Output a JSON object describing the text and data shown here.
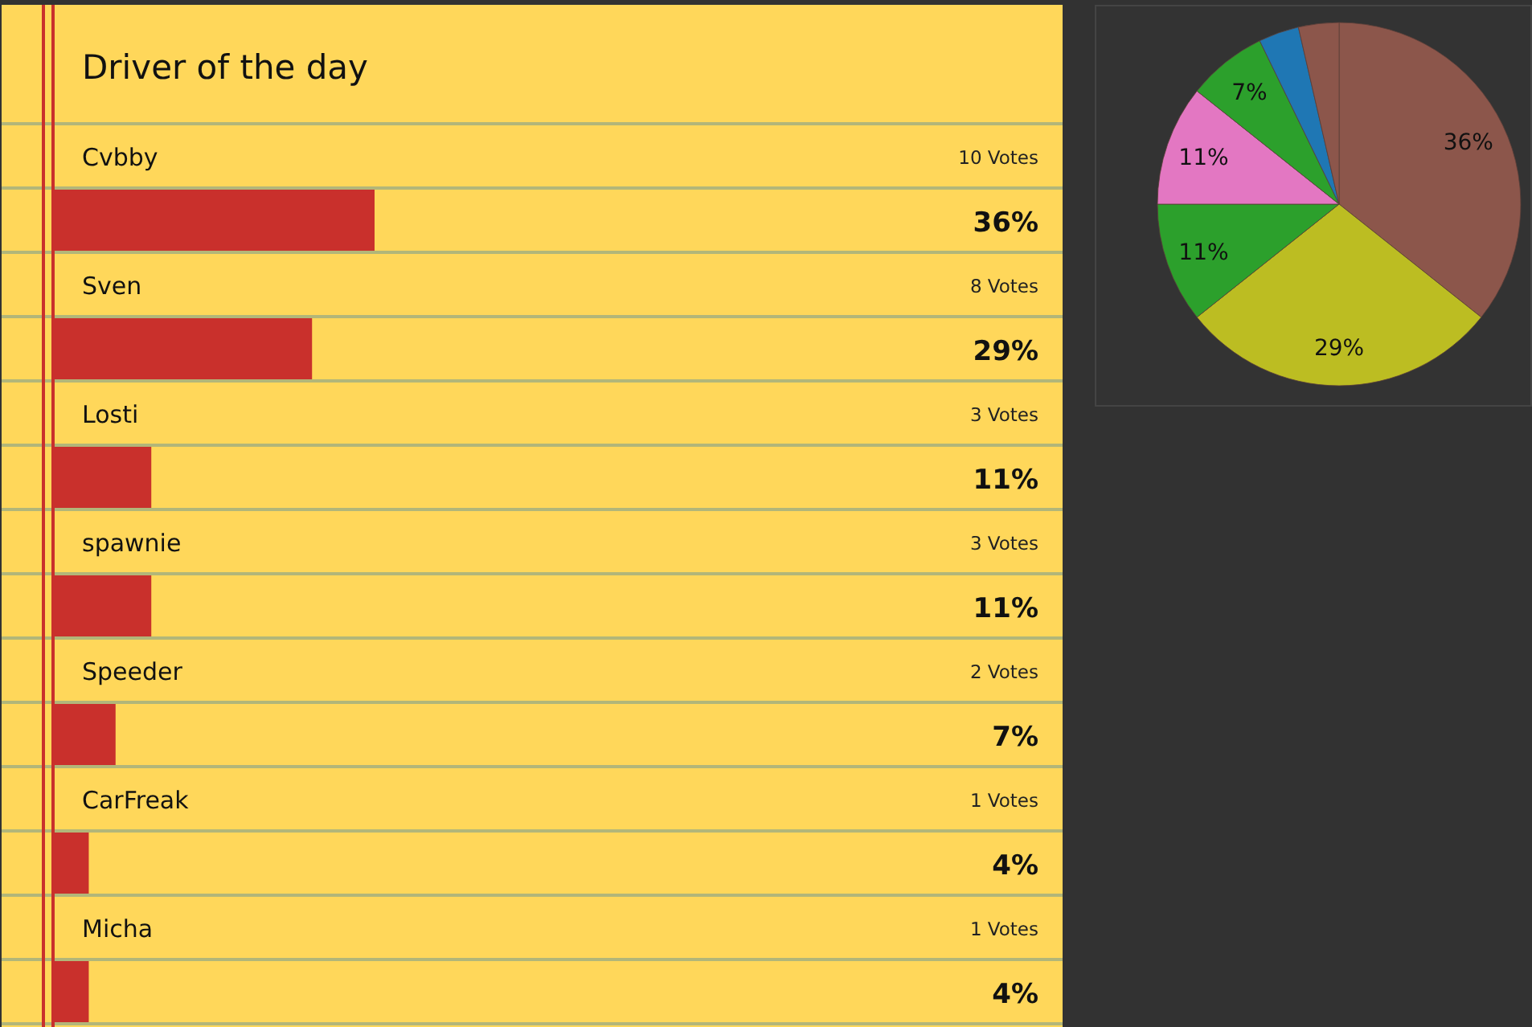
{
  "chart_data": [
    {
      "type": "bar",
      "orientation": "horizontal",
      "title": "Driver of the day",
      "categories": [
        "Cvbby",
        "Sven",
        "Losti",
        "spawnie",
        "Speeder",
        "CarFreak",
        "Micha"
      ],
      "values": [
        36,
        29,
        11,
        11,
        7,
        4,
        4
      ],
      "value_labels": [
        "36%",
        "29%",
        "11%",
        "11%",
        "7%",
        "4%",
        "4%"
      ],
      "annotations": [
        "10 Votes",
        "8 Votes",
        "3 Votes",
        "3 Votes",
        "2 Votes",
        "1 Votes",
        "1 Votes"
      ],
      "color": "#c9302c"
    },
    {
      "type": "pie",
      "categories": [
        null,
        null,
        null,
        null,
        null,
        null,
        null
      ],
      "values": [
        35.7,
        28.6,
        10.7,
        10.7,
        7.1,
        3.6,
        3.6
      ],
      "value_labels": [
        "36%",
        "29%",
        "11%",
        "11%",
        "7%",
        null,
        null
      ],
      "colors": [
        "#8c564b",
        "#bcbd22",
        "#2ca02c",
        "#e377c2",
        "#2ca02c",
        "#1f77b4",
        "#8c564b"
      ]
    }
  ]
}
